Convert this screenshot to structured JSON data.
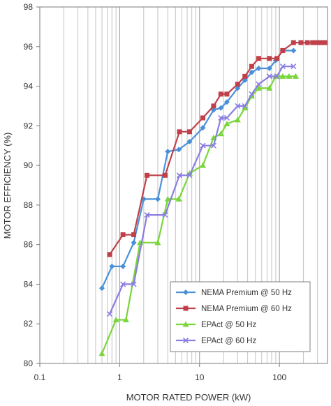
{
  "chart_data": {
    "type": "line",
    "title": "",
    "xlabel": "MOTOR RATED POWER (kW)",
    "ylabel": "MOTOR EFFICIENCY (%)",
    "xscale": "log",
    "xlim": [
      0.1,
      400
    ],
    "ylim": [
      80,
      98
    ],
    "x_ticks": [
      "0.1",
      "1",
      "10",
      "100"
    ],
    "y_ticks": [
      "80",
      "82",
      "84",
      "86",
      "88",
      "90",
      "92",
      "94",
      "96",
      "98"
    ],
    "grid": "vertical log gridlines",
    "legend_position": "lower-right",
    "series": [
      {
        "name": "NEMA Premium @ 50 Hz",
        "color": "#4a90d9",
        "marker": "diamond",
        "x": [
          0.6,
          0.8,
          1.1,
          1.5,
          2.0,
          3.0,
          4.0,
          5.5,
          7.5,
          11,
          15,
          18.5,
          22,
          30,
          37,
          45,
          55,
          75,
          90,
          110,
          150
        ],
        "y": [
          83.8,
          84.9,
          84.9,
          86.1,
          88.3,
          88.3,
          90.7,
          90.8,
          91.2,
          91.9,
          92.8,
          92.9,
          93.2,
          93.9,
          94.3,
          94.7,
          94.9,
          94.9,
          95.3,
          95.8,
          95.8
        ]
      },
      {
        "name": "NEMA Premium @ 60 Hz",
        "color": "#c0404a",
        "marker": "square",
        "x": [
          0.75,
          1.1,
          1.5,
          2.2,
          3.7,
          5.6,
          7.5,
          11,
          15,
          18.5,
          22,
          30,
          37,
          45,
          55,
          75,
          93,
          110,
          150,
          186,
          224,
          261,
          298,
          336,
          373
        ],
        "y": [
          85.5,
          86.5,
          86.5,
          89.5,
          89.5,
          91.7,
          91.7,
          92.4,
          93.0,
          93.6,
          93.6,
          94.1,
          94.5,
          95.0,
          95.4,
          95.4,
          95.4,
          95.8,
          96.2,
          96.2,
          96.2,
          96.2,
          96.2,
          96.2,
          96.2
        ]
      },
      {
        "name": "EPAct @ 50 Hz",
        "color": "#7ad63a",
        "marker": "triangle",
        "x": [
          0.6,
          0.9,
          1.2,
          1.8,
          3.0,
          4.0,
          5.5,
          7.5,
          11,
          15,
          18.5,
          22,
          30,
          37,
          45,
          55,
          75,
          90,
          110,
          132,
          160
        ],
        "y": [
          80.5,
          82.2,
          82.2,
          86.1,
          86.1,
          88.3,
          88.3,
          89.6,
          90.0,
          91.4,
          91.6,
          92.1,
          92.3,
          92.9,
          93.5,
          93.9,
          93.9,
          94.5,
          94.5,
          94.5,
          94.5
        ]
      },
      {
        "name": "EPAct @ 60 Hz",
        "color": "#8a7ee0",
        "marker": "x",
        "x": [
          0.75,
          1.1,
          1.5,
          2.2,
          3.7,
          5.6,
          7.5,
          11,
          15,
          18.5,
          22,
          30,
          37,
          45,
          55,
          75,
          93,
          110,
          150
        ],
        "y": [
          82.5,
          84.0,
          84.0,
          87.5,
          87.5,
          89.5,
          89.5,
          91.0,
          91.0,
          92.4,
          92.4,
          93.0,
          93.0,
          93.6,
          94.1,
          94.5,
          94.5,
          95.0,
          95.0
        ]
      }
    ]
  }
}
